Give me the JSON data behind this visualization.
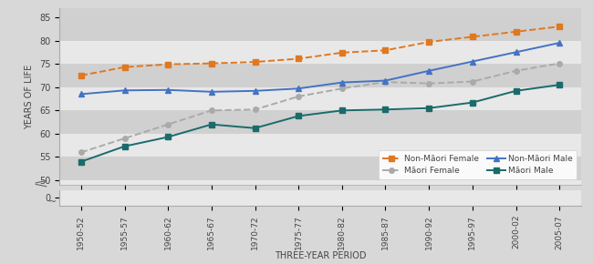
{
  "x_labels": [
    "1950-52",
    "1955-57",
    "1960-62",
    "1965-67",
    "1970-72",
    "1975-77",
    "1980-82",
    "1985-87",
    "1990-92",
    "1995-97",
    "2000-02",
    "2005-07"
  ],
  "non_maori_female": [
    72.5,
    74.3,
    74.9,
    75.1,
    75.4,
    76.1,
    77.4,
    77.9,
    79.7,
    80.8,
    81.9,
    83.0
  ],
  "maori_female": [
    56.0,
    59.0,
    62.0,
    65.0,
    65.2,
    68.0,
    69.7,
    71.1,
    70.8,
    71.2,
    73.5,
    75.1
  ],
  "non_maori_male": [
    68.5,
    69.3,
    69.4,
    69.0,
    69.2,
    69.7,
    71.0,
    71.4,
    73.5,
    75.5,
    77.5,
    79.5
  ],
  "maori_male": [
    54.0,
    57.3,
    59.3,
    62.0,
    61.2,
    63.8,
    65.0,
    65.2,
    65.5,
    66.7,
    69.2,
    70.5
  ],
  "colors": {
    "non_maori_female": "#E07820",
    "maori_female": "#AAAAAA",
    "non_maori_male": "#4472C4",
    "maori_male": "#1A6B6B"
  },
  "ylabel": "YEARS OF LIFE",
  "xlabel": "THREE-YEAR PERIOD",
  "yticks_top": [
    50,
    55,
    60,
    65,
    70,
    75,
    80,
    85
  ],
  "ytick_bottom": 0,
  "fig_bg": "#D8D8D8",
  "plot_bg": "#E8E8E8",
  "band_dark": "#D0D0D0",
  "legend_labels": [
    "Non-Māori Female",
    "Māori Female",
    "Non-Māori Male",
    "Māori Male"
  ]
}
